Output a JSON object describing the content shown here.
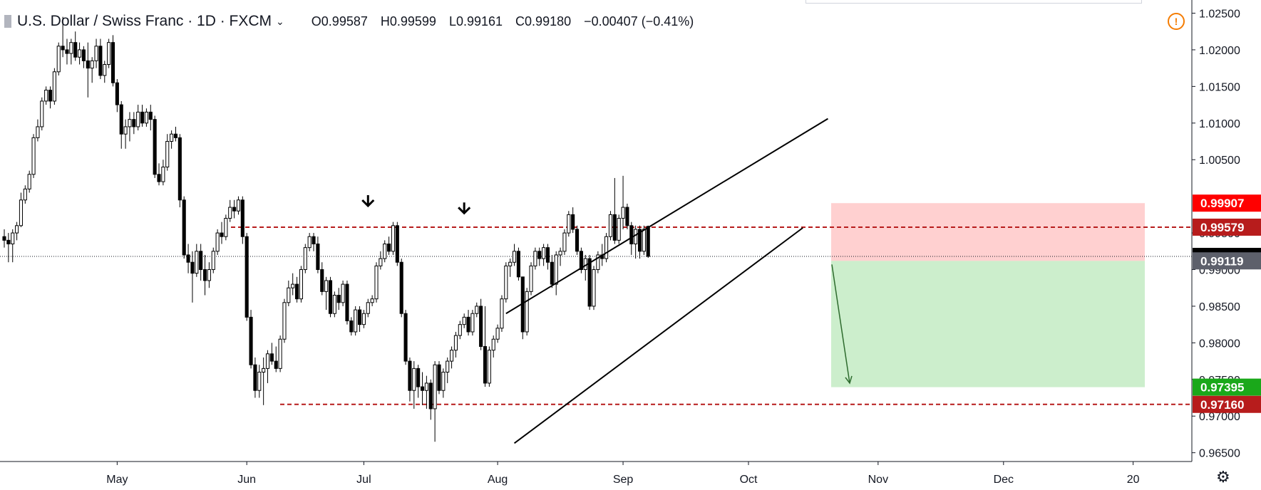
{
  "header": {
    "symbol": "U.S. Dollar / Swiss Franc · 1D · FXCM",
    "open_label": "O",
    "open": "0.99587",
    "high_label": "H",
    "high": "0.99599",
    "low_label": "L",
    "low": "0.99161",
    "close_label": "C",
    "close": "0.99180",
    "change": "−0.00407 (−0.41%)"
  },
  "icons": {
    "alert": "alert-icon",
    "settings": "gear-icon",
    "chevron": "chevron-down-icon"
  },
  "colors": {
    "up": "#ffffff",
    "down": "#000000",
    "stop_zone": "rgba(255,120,120,0.35)",
    "target_zone": "rgba(120,210,120,0.38)",
    "level_line": "#b71c1c",
    "badge_red": "#ff0000",
    "badge_darkred": "#b71c1c",
    "badge_black": "#000000",
    "badge_gray": "#5d606b",
    "badge_green": "#1aa81a"
  },
  "chart_data": {
    "type": "candlestick",
    "title": "U.S. Dollar / Swiss Franc · 1D · FXCM",
    "y_axis": {
      "ticks": [
        "1.02500",
        "1.02000",
        "1.01500",
        "1.01000",
        "1.00500",
        "0.99500",
        "0.99000",
        "0.98500",
        "0.98000",
        "0.97500",
        "0.97000",
        "0.96500"
      ],
      "tick_values": [
        1.025,
        1.02,
        1.015,
        1.01,
        1.005,
        0.995,
        0.99,
        0.985,
        0.98,
        0.975,
        0.97,
        0.965
      ],
      "range": [
        0.9638,
        1.0268
      ]
    },
    "x_axis": {
      "labels": [
        "May",
        "Jun",
        "Jul",
        "Aug",
        "Sep",
        "Oct",
        "Nov",
        "Dec",
        "20"
      ],
      "label_days": [
        27,
        58,
        86,
        118,
        148,
        178,
        209,
        239,
        270
      ]
    },
    "candles": [
      [
        0.9945,
        0.9955,
        0.993,
        0.994
      ],
      [
        0.994,
        0.995,
        0.991,
        0.9935
      ],
      [
        0.9935,
        0.9955,
        0.991,
        0.995
      ],
      [
        0.995,
        0.9965,
        0.994,
        0.996
      ],
      [
        0.996,
        1.0005,
        0.9958,
        0.9995
      ],
      [
        0.9995,
        1.0015,
        0.999,
        1.001
      ],
      [
        1.001,
        1.0035,
        1.0005,
        1.003
      ],
      [
        1.003,
        1.0085,
        1.0025,
        1.008
      ],
      [
        1.008,
        1.0105,
        1.0075,
        1.0095
      ],
      [
        1.0095,
        1.0135,
        1.009,
        1.013
      ],
      [
        1.013,
        1.015,
        1.0125,
        1.0145
      ],
      [
        1.0145,
        1.015,
        1.012,
        1.013
      ],
      [
        1.013,
        1.0175,
        1.0125,
        1.017
      ],
      [
        1.017,
        1.021,
        1.0165,
        1.0205
      ],
      [
        1.0205,
        1.0245,
        1.019,
        1.02
      ],
      [
        1.02,
        1.0215,
        1.018,
        1.0195
      ],
      [
        1.0195,
        1.0215,
        1.018,
        1.021
      ],
      [
        1.021,
        1.0225,
        1.0185,
        1.019
      ],
      [
        1.019,
        1.021,
        1.018,
        1.02
      ],
      [
        1.02,
        1.0205,
        1.0175,
        1.0185
      ],
      [
        1.0185,
        1.021,
        1.0135,
        1.0175
      ],
      [
        1.0175,
        1.019,
        1.0155,
        1.0185
      ],
      [
        1.0185,
        1.0215,
        1.0175,
        1.0205
      ],
      [
        1.0205,
        1.0215,
        1.016,
        1.0165
      ],
      [
        1.0165,
        1.0185,
        1.0155,
        1.018
      ],
      [
        1.018,
        1.0215,
        1.0175,
        1.021
      ],
      [
        1.021,
        1.022,
        1.015,
        1.0155
      ],
      [
        1.0155,
        1.016,
        1.0115,
        1.0125
      ],
      [
        1.0125,
        1.013,
        1.0065,
        1.0085
      ],
      [
        1.0085,
        1.0105,
        1.0065,
        1.0095
      ],
      [
        1.0095,
        1.0115,
        1.0075,
        1.0105
      ],
      [
        1.0105,
        1.0115,
        1.0085,
        1.0095
      ],
      [
        1.0095,
        1.0125,
        1.009,
        1.0115
      ],
      [
        1.0115,
        1.0125,
        1.0095,
        1.01
      ],
      [
        1.01,
        1.012,
        1.0095,
        1.0115
      ],
      [
        1.0115,
        1.0125,
        1.009,
        1.0105
      ],
      [
        1.0105,
        1.011,
        1.0025,
        1.003
      ],
      [
        1.003,
        1.0045,
        1.0015,
        1.002
      ],
      [
        1.002,
        1.005,
        1.0015,
        1.004
      ],
      [
        1.004,
        1.0085,
        1.0035,
        1.0075
      ],
      [
        1.0075,
        1.009,
        1.0065,
        1.0085
      ],
      [
        1.0085,
        1.0095,
        1.0075,
        1.008
      ],
      [
        1.008,
        1.0085,
        0.9985,
        0.9995
      ],
      [
        0.9995,
        1.0,
        0.9915,
        0.992
      ],
      [
        0.992,
        0.9935,
        0.9895,
        0.991
      ],
      [
        0.991,
        0.9925,
        0.9855,
        0.9895
      ],
      [
        0.9895,
        0.9935,
        0.989,
        0.9925
      ],
      [
        0.9925,
        0.9935,
        0.9885,
        0.99
      ],
      [
        0.99,
        0.992,
        0.9865,
        0.9885
      ],
      [
        0.9885,
        0.991,
        0.9875,
        0.99
      ],
      [
        0.99,
        0.993,
        0.9895,
        0.9925
      ],
      [
        0.9925,
        0.9955,
        0.992,
        0.995
      ],
      [
        0.995,
        0.9965,
        0.9935,
        0.9945
      ],
      [
        0.9945,
        0.9975,
        0.994,
        0.997
      ],
      [
        0.997,
        0.9995,
        0.9965,
        0.9985
      ],
      [
        0.9985,
        0.9995,
        0.997,
        0.998
      ],
      [
        0.998,
        1.0,
        0.9975,
        0.9995
      ],
      [
        0.9995,
        1.0,
        0.9935,
        0.9945
      ],
      [
        0.9945,
        0.995,
        0.983,
        0.9835
      ],
      [
        0.9835,
        0.9845,
        0.9765,
        0.977
      ],
      [
        0.977,
        0.978,
        0.9725,
        0.9735
      ],
      [
        0.9735,
        0.977,
        0.9725,
        0.976
      ],
      [
        0.976,
        0.978,
        0.9715,
        0.9765
      ],
      [
        0.9765,
        0.979,
        0.9745,
        0.9785
      ],
      [
        0.9785,
        0.98,
        0.977,
        0.9775
      ],
      [
        0.9775,
        0.9795,
        0.976,
        0.9765
      ],
      [
        0.9765,
        0.981,
        0.976,
        0.9805
      ],
      [
        0.9805,
        0.986,
        0.98,
        0.9855
      ],
      [
        0.9855,
        0.9885,
        0.985,
        0.9875
      ],
      [
        0.9875,
        0.9895,
        0.9865,
        0.988
      ],
      [
        0.988,
        0.989,
        0.9855,
        0.986
      ],
      [
        0.986,
        0.9905,
        0.9855,
        0.99
      ],
      [
        0.99,
        0.9935,
        0.9895,
        0.993
      ],
      [
        0.993,
        0.995,
        0.9925,
        0.9945
      ],
      [
        0.9945,
        0.995,
        0.9925,
        0.9935
      ],
      [
        0.9935,
        0.9945,
        0.9895,
        0.99
      ],
      [
        0.99,
        0.991,
        0.9865,
        0.987
      ],
      [
        0.987,
        0.989,
        0.9845,
        0.9885
      ],
      [
        0.9885,
        0.989,
        0.9835,
        0.984
      ],
      [
        0.984,
        0.987,
        0.9835,
        0.9865
      ],
      [
        0.9865,
        0.9875,
        0.9845,
        0.9855
      ],
      [
        0.9855,
        0.9885,
        0.985,
        0.988
      ],
      [
        0.988,
        0.9885,
        0.9825,
        0.983
      ],
      [
        0.983,
        0.9835,
        0.981,
        0.9815
      ],
      [
        0.9815,
        0.985,
        0.981,
        0.9845
      ],
      [
        0.9845,
        0.985,
        0.9815,
        0.9825
      ],
      [
        0.9825,
        0.9845,
        0.982,
        0.984
      ],
      [
        0.984,
        0.986,
        0.9835,
        0.9855
      ],
      [
        0.9855,
        0.9865,
        0.985,
        0.986
      ],
      [
        0.986,
        0.991,
        0.9855,
        0.9905
      ],
      [
        0.9905,
        0.9925,
        0.99,
        0.9915
      ],
      [
        0.9915,
        0.994,
        0.991,
        0.9935
      ],
      [
        0.9935,
        0.9945,
        0.992,
        0.9925
      ],
      [
        0.9925,
        0.9965,
        0.992,
        0.996
      ],
      [
        0.996,
        0.9965,
        0.9905,
        0.991
      ],
      [
        0.991,
        0.9915,
        0.9835,
        0.984
      ],
      [
        0.984,
        0.9845,
        0.977,
        0.9775
      ],
      [
        0.9775,
        0.978,
        0.972,
        0.9735
      ],
      [
        0.9735,
        0.9775,
        0.971,
        0.9765
      ],
      [
        0.9765,
        0.977,
        0.9725,
        0.974
      ],
      [
        0.974,
        0.976,
        0.9715,
        0.9735
      ],
      [
        0.9735,
        0.9755,
        0.971,
        0.9745
      ],
      [
        0.9745,
        0.975,
        0.9695,
        0.971
      ],
      [
        0.971,
        0.9775,
        0.9665,
        0.977
      ],
      [
        0.977,
        0.9775,
        0.973,
        0.9735
      ],
      [
        0.9735,
        0.9765,
        0.9725,
        0.976
      ],
      [
        0.976,
        0.978,
        0.9745,
        0.9775
      ],
      [
        0.9775,
        0.9795,
        0.9765,
        0.979
      ],
      [
        0.979,
        0.9815,
        0.978,
        0.981
      ],
      [
        0.981,
        0.983,
        0.9805,
        0.9825
      ],
      [
        0.9825,
        0.984,
        0.982,
        0.9835
      ],
      [
        0.9835,
        0.9845,
        0.981,
        0.9815
      ],
      [
        0.9815,
        0.9845,
        0.981,
        0.984
      ],
      [
        0.984,
        0.9855,
        0.9835,
        0.985
      ],
      [
        0.985,
        0.986,
        0.979,
        0.9795
      ],
      [
        0.9795,
        0.985,
        0.974,
        0.9745
      ],
      [
        0.9745,
        0.9795,
        0.974,
        0.979
      ],
      [
        0.979,
        0.981,
        0.978,
        0.9805
      ],
      [
        0.9805,
        0.9825,
        0.98,
        0.982
      ],
      [
        0.982,
        0.9865,
        0.9815,
        0.986
      ],
      [
        0.986,
        0.991,
        0.9855,
        0.9905
      ],
      [
        0.9905,
        0.9915,
        0.989,
        0.991
      ],
      [
        0.991,
        0.9935,
        0.9905,
        0.9925
      ],
      [
        0.9925,
        0.993,
        0.9885,
        0.989
      ],
      [
        0.989,
        0.989,
        0.9805,
        0.9815
      ],
      [
        0.9815,
        0.9875,
        0.981,
        0.987
      ],
      [
        0.987,
        0.991,
        0.9865,
        0.9905
      ],
      [
        0.9905,
        0.993,
        0.99,
        0.9925
      ],
      [
        0.9925,
        0.993,
        0.9905,
        0.9915
      ],
      [
        0.9915,
        0.9935,
        0.9905,
        0.993
      ],
      [
        0.993,
        0.9935,
        0.99,
        0.991
      ],
      [
        0.991,
        0.992,
        0.9875,
        0.988
      ],
      [
        0.988,
        0.9925,
        0.9865,
        0.992
      ],
      [
        0.992,
        0.993,
        0.9905,
        0.9925
      ],
      [
        0.9925,
        0.9955,
        0.992,
        0.995
      ],
      [
        0.995,
        0.998,
        0.9945,
        0.9975
      ],
      [
        0.9975,
        0.9985,
        0.995,
        0.9955
      ],
      [
        0.9955,
        0.996,
        0.992,
        0.9925
      ],
      [
        0.9925,
        0.993,
        0.9895,
        0.99
      ],
      [
        0.99,
        0.992,
        0.9885,
        0.9915
      ],
      [
        0.9915,
        0.992,
        0.9845,
        0.985
      ],
      [
        0.985,
        0.9905,
        0.9845,
        0.99
      ],
      [
        0.99,
        0.9925,
        0.9895,
        0.992
      ],
      [
        0.992,
        0.9935,
        0.9905,
        0.9915
      ],
      [
        0.9915,
        0.995,
        0.991,
        0.9945
      ],
      [
        0.9945,
        0.998,
        0.994,
        0.9975
      ],
      [
        0.9975,
        1.0025,
        0.9935,
        0.994
      ],
      [
        0.994,
        0.9975,
        0.9935,
        0.997
      ],
      [
        0.997,
        1.0028,
        0.9955,
        0.9985
      ],
      [
        0.9985,
        0.999,
        0.9955,
        0.996
      ],
      [
        0.996,
        0.9965,
        0.992,
        0.9935
      ],
      [
        0.9935,
        0.996,
        0.9915,
        0.9955
      ],
      [
        0.9955,
        0.996,
        0.9915,
        0.9925
      ],
      [
        0.9925,
        0.996,
        0.992,
        0.9955
      ],
      [
        0.9959,
        0.996,
        0.9916,
        0.9918
      ]
    ],
    "horizontal_levels": [
      0.99579,
      0.9716
    ],
    "channel": {
      "upper": [
        [
          120,
          0.984
        ],
        [
          197,
          1.0106
        ]
      ],
      "lower": [
        [
          122,
          0.9663
        ],
        [
          191,
          0.9957
        ]
      ]
    },
    "markers": [
      {
        "type": "arrow-down",
        "day": 87,
        "price": 0.9988
      },
      {
        "type": "arrow-down",
        "day": 110,
        "price": 0.9978
      }
    ],
    "position": {
      "entry": 0.99119,
      "stop": 0.99907,
      "target": 0.97395,
      "start_day": 185,
      "end_day": 255,
      "arrow": [
        [
          185,
          0.9907
        ],
        [
          189,
          0.9745
        ]
      ]
    },
    "current_price": 0.9918,
    "price_badges": [
      {
        "value": "0.99907",
        "color": "#ff0000"
      },
      {
        "value": "0.99579",
        "color": "#b71c1c"
      },
      {
        "value": "0.99180",
        "color": "#000000"
      },
      {
        "value": "0.99119",
        "color": "#5d606b"
      },
      {
        "value": "0.97395",
        "color": "#1aa81a"
      },
      {
        "value": "0.97160",
        "color": "#b71c1c"
      }
    ]
  }
}
